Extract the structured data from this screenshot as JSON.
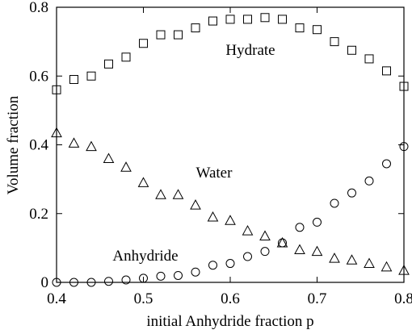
{
  "chart_data": {
    "type": "scatter",
    "x_label": "initial Anhydride fraction p",
    "y_label": "Volume fraction",
    "x": [
      0.4,
      0.42,
      0.44,
      0.46,
      0.48,
      0.5,
      0.52,
      0.54,
      0.56,
      0.58,
      0.6,
      0.62,
      0.64,
      0.66,
      0.68,
      0.7,
      0.72,
      0.74,
      0.76,
      0.78,
      0.8
    ],
    "series": [
      {
        "name": "Hydrate",
        "marker": "square",
        "color": "#000000",
        "values": [
          0.56,
          0.59,
          0.6,
          0.635,
          0.655,
          0.695,
          0.72,
          0.72,
          0.74,
          0.76,
          0.765,
          0.765,
          0.77,
          0.765,
          0.74,
          0.735,
          0.7,
          0.675,
          0.65,
          0.615,
          0.57
        ]
      },
      {
        "name": "Water",
        "marker": "triangle",
        "color": "#000000",
        "values": [
          0.435,
          0.405,
          0.395,
          0.36,
          0.335,
          0.29,
          0.255,
          0.255,
          0.225,
          0.19,
          0.18,
          0.15,
          0.135,
          0.115,
          0.095,
          0.09,
          0.07,
          0.065,
          0.055,
          0.045,
          0.035
        ]
      },
      {
        "name": "Anhydride",
        "marker": "circle",
        "color": "#000000",
        "values": [
          0,
          0,
          0,
          0.003,
          0.007,
          0.012,
          0.018,
          0.02,
          0.03,
          0.05,
          0.055,
          0.075,
          0.09,
          0.115,
          0.16,
          0.175,
          0.23,
          0.26,
          0.295,
          0.345,
          0.395
        ]
      }
    ],
    "xlim": [
      0.4,
      0.8
    ],
    "xticks": [
      0.4,
      0.5,
      0.6,
      0.7,
      0.8
    ],
    "ylim": [
      0,
      0.8
    ],
    "yticks": [
      0,
      0.2,
      0.4,
      0.6,
      0.8
    ],
    "grid": false
  }
}
